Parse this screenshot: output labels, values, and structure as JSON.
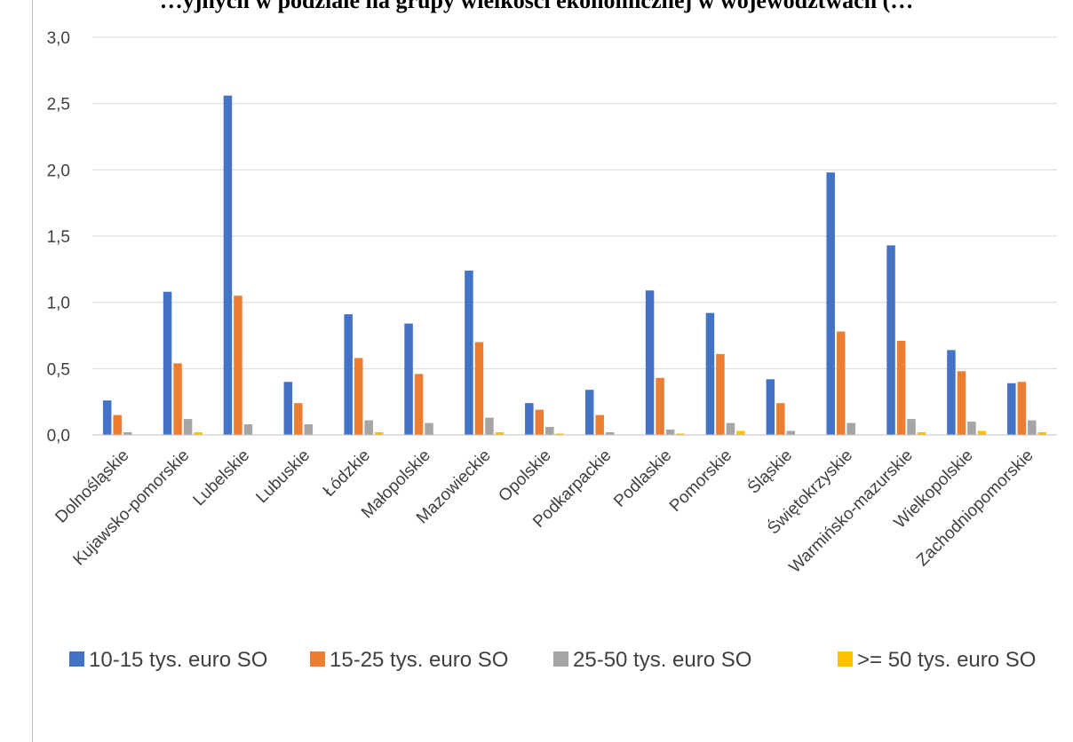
{
  "title": "…yjnych w podziale na grupy wielkości ekonomicznej w województwach (…",
  "colors": {
    "series": [
      "#4472C4",
      "#ED7D31",
      "#A5A5A5",
      "#FFC000"
    ],
    "grid": "#d9d9d9",
    "axis": "#bfbfbf",
    "text": "#404040"
  },
  "chart_data": {
    "type": "bar",
    "title": "…yjnych w podziale na grupy wielkości ekonomicznej w województwach (…",
    "xlabel": "",
    "ylabel": "",
    "ylim": [
      0,
      3.0
    ],
    "yticks": [
      "0,0",
      "0,5",
      "1,0",
      "1,5",
      "2,0",
      "2,5",
      "3,0"
    ],
    "grid": true,
    "legend_position": "bottom",
    "categories": [
      "Dolnośląskie",
      "Kujawsko-pomorskie",
      "Lubelskie",
      "Lubuskie",
      "Łódzkie",
      "Małopolskie",
      "Mazowieckie",
      "Opolskie",
      "Podkarpackie",
      "Podlaskie",
      "Pomorskie",
      "Śląskie",
      "Świętokrzyskie",
      "Warmińsko-mazurskie",
      "Wielkopolskie",
      "Zachodniopomorskie"
    ],
    "series": [
      {
        "name": "10-15 tys. euro SO",
        "values": [
          0.26,
          1.08,
          2.56,
          0.4,
          0.91,
          0.84,
          1.24,
          0.24,
          0.34,
          1.09,
          0.92,
          0.42,
          1.98,
          1.43,
          0.64,
          0.39
        ]
      },
      {
        "name": "15-25 tys. euro SO",
        "values": [
          0.15,
          0.54,
          1.05,
          0.24,
          0.58,
          0.46,
          0.7,
          0.19,
          0.15,
          0.43,
          0.61,
          0.24,
          0.78,
          0.71,
          0.48,
          0.4
        ]
      },
      {
        "name": "25-50 tys. euro SO",
        "values": [
          0.02,
          0.12,
          0.08,
          0.08,
          0.11,
          0.09,
          0.13,
          0.06,
          0.02,
          0.04,
          0.09,
          0.03,
          0.09,
          0.12,
          0.1,
          0.11
        ]
      },
      {
        "name": ">= 50 tys. euro SO",
        "values": [
          0.0,
          0.02,
          0.0,
          0.0,
          0.02,
          0.0,
          0.02,
          0.01,
          0.0,
          0.01,
          0.03,
          0.0,
          0.0,
          0.02,
          0.03,
          0.02
        ]
      }
    ]
  }
}
